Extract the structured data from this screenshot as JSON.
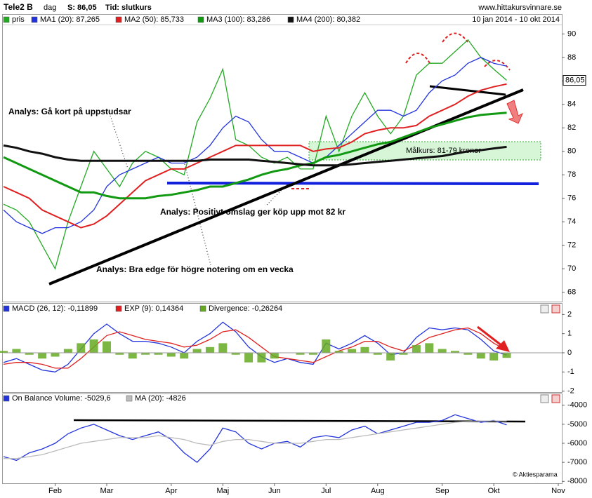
{
  "header": {
    "title": "Tele2 B",
    "period": "dag",
    "last": "S: 86,05",
    "time": "Tid: slutkurs",
    "site": "www.hittakursvinnare.se",
    "range": "10 jan 2014 - 10 okt 2014"
  },
  "annotations": [
    "Analys: Gå kort på uppstudsar",
    "Analys: Positivt omslag ger köp upp mot 82 kr",
    "Analys: Bra edge för högre notering om en vecka",
    "Målkurs: 81-79 kronor",
    "© Aktiesparama"
  ],
  "chart_data": [
    {
      "type": "line",
      "ylim": [
        67.2,
        90.8
      ],
      "yticks": [
        68,
        70,
        72,
        74,
        76,
        78,
        80,
        82,
        84,
        86,
        88,
        90
      ],
      "series": [
        {
          "name": "pris",
          "color": "#22aa22",
          "values": [
            75.5,
            75,
            74,
            72,
            70,
            74,
            77,
            80,
            78.5,
            77,
            79,
            80,
            79.5,
            78.5,
            78,
            82.5,
            84.5,
            87,
            81,
            80.5,
            79.5,
            79,
            79.5,
            78.5,
            78.5,
            83,
            80,
            83,
            85,
            83,
            81.5,
            83,
            86.5,
            87.5,
            87.5,
            88.5,
            89.5,
            88,
            87,
            86.05,
            null,
            null,
            null,
            null
          ],
          "value_labels": [
            null,
            null,
            null,
            null,
            null,
            null,
            null,
            null,
            null,
            null,
            null,
            null,
            null,
            null,
            null,
            null,
            null,
            null,
            null,
            null,
            null,
            null,
            null,
            null,
            null,
            null,
            null,
            null,
            null,
            null,
            null,
            null,
            null,
            null,
            null,
            null,
            null,
            null,
            null,
            "86,05",
            null,
            null,
            null,
            null
          ]
        },
        {
          "name": "MA1 (20): 87,265",
          "color": "#2233dd",
          "values": [
            75,
            74,
            73.5,
            73,
            73.5,
            73.5,
            74,
            75,
            77,
            78,
            78.5,
            79,
            79.5,
            79,
            79,
            79.5,
            80.5,
            82,
            83,
            82.5,
            81,
            80,
            80,
            79.5,
            79,
            79.5,
            80.5,
            81.5,
            82.5,
            83.5,
            83.5,
            83,
            83.5,
            85,
            86,
            86.5,
            87.5,
            88,
            87.5,
            87.265,
            null,
            null,
            null,
            null
          ]
        },
        {
          "name": "MA2 (50): 85,733",
          "color": "#e02020",
          "values": [
            77,
            76.5,
            76,
            75,
            74.5,
            74,
            73.5,
            73.8,
            74.5,
            75.5,
            76.5,
            77.5,
            78,
            78.5,
            78.5,
            79,
            79.5,
            80,
            80.5,
            80.5,
            80.5,
            80.5,
            80.5,
            80.5,
            80,
            80.2,
            80.3,
            80.8,
            81.5,
            81.8,
            82,
            82,
            82.2,
            83,
            83.5,
            84,
            84.7,
            85.2,
            85.5,
            85.733,
            null,
            null,
            null,
            null
          ]
        },
        {
          "name": "MA3 (100): 83,286",
          "color": "#119911",
          "values": [
            79.5,
            79,
            78.5,
            78,
            77.5,
            77,
            76.5,
            76.5,
            76.2,
            76,
            76,
            76,
            76.2,
            76.3,
            76.5,
            76.7,
            77,
            77,
            77.3,
            77.6,
            78,
            78.3,
            78.5,
            78.8,
            79,
            79.5,
            79.7,
            80,
            80.3,
            80.6,
            80.8,
            81.2,
            81.6,
            82,
            82.3,
            82.6,
            82.9,
            83.1,
            83.2,
            83.286,
            null,
            null,
            null,
            null
          ]
        },
        {
          "name": "MA4 (200): 80,382",
          "color": "#111111",
          "values": [
            80.5,
            80.3,
            80,
            79.8,
            79.5,
            79.3,
            79.2,
            79.2,
            79.2,
            79.2,
            79.2,
            79.2,
            79.2,
            79.2,
            79.2,
            79.2,
            79.3,
            79.3,
            79.3,
            79.3,
            79.2,
            79.1,
            79,
            78.9,
            78.8,
            78.8,
            78.8,
            78.9,
            79,
            79.1,
            79.2,
            79.3,
            79.4,
            79.5,
            79.6,
            79.8,
            80,
            80.1,
            80.25,
            80.382,
            null,
            null,
            null,
            null
          ]
        }
      ]
    },
    {
      "type": "line",
      "ylim": [
        -2.05,
        2.05
      ],
      "yticks": [
        -2,
        -1,
        0,
        1,
        2
      ],
      "series": [
        {
          "name": "MACD (26, 12): -0,11899",
          "color": "#2233dd",
          "values": [
            -0.5,
            -0.3,
            -0.6,
            -0.9,
            -1.0,
            -0.6,
            0.2,
            1.0,
            1.5,
            1.0,
            0.6,
            0.6,
            0.5,
            0.3,
            0,
            0.6,
            1.0,
            1.6,
            1.1,
            0.3,
            -0.2,
            -0.5,
            -0.3,
            -0.5,
            -0.6,
            0.5,
            0.2,
            0.5,
            0.9,
            0.5,
            -0.1,
            0,
            0.8,
            1.3,
            1.2,
            1.3,
            1.2,
            0.7,
            0.1,
            -0.11899,
            null,
            null,
            null,
            null
          ]
        },
        {
          "name": "EXP (9): 0,14364",
          "color": "#e02020",
          "values": [
            -0.6,
            -0.5,
            -0.5,
            -0.6,
            -0.8,
            -0.8,
            -0.3,
            0.3,
            0.9,
            1.1,
            0.9,
            0.7,
            0.6,
            0.5,
            0.3,
            0.4,
            0.7,
            1.1,
            1.2,
            0.8,
            0.3,
            -0.2,
            -0.3,
            -0.4,
            -0.5,
            -0.2,
            0.1,
            0.3,
            0.6,
            0.6,
            0.3,
            0.1,
            0.4,
            0.8,
            1.0,
            1.2,
            1.3,
            1.0,
            0.5,
            0.14364,
            null,
            null,
            null,
            null
          ]
        },
        {
          "name": "Divergence: -0,26264",
          "color": "#66aa22",
          "kind": "bar",
          "values": [
            0.1,
            0.2,
            -0.1,
            -0.3,
            -0.2,
            0.2,
            0.5,
            0.7,
            0.6,
            -0.1,
            -0.3,
            -0.1,
            -0.1,
            -0.2,
            -0.3,
            0.2,
            0.3,
            0.5,
            -0.1,
            -0.5,
            -0.5,
            -0.3,
            0,
            -0.1,
            -0.1,
            0.7,
            0.1,
            0.2,
            0.3,
            -0.1,
            -0.4,
            -0.1,
            0.4,
            0.5,
            0.2,
            0.1,
            -0.1,
            -0.3,
            -0.4,
            -0.26264,
            null,
            null,
            null,
            null
          ]
        }
      ]
    },
    {
      "type": "line",
      "ylim": [
        -8100,
        -3900
      ],
      "yticks": [
        -8000,
        -7000,
        -6000,
        -5000,
        -4000
      ],
      "categories": [
        null,
        null,
        null,
        null,
        "Feb",
        null,
        null,
        null,
        "Mar",
        null,
        null,
        null,
        null,
        "Apr",
        null,
        null,
        null,
        "Maj",
        null,
        null,
        null,
        "Jun",
        null,
        null,
        null,
        "Jul",
        null,
        null,
        null,
        "Aug",
        null,
        null,
        null,
        null,
        "Sep",
        null,
        null,
        null,
        "Okt",
        null,
        null,
        null,
        null,
        "Nov"
      ],
      "series": [
        {
          "name": "On Balance Volume: -5029,6",
          "color": "#2233dd",
          "values": [
            -6700,
            -6900,
            -6500,
            -6300,
            -6000,
            -5500,
            -5200,
            -5000,
            -5300,
            -5600,
            -5800,
            -5600,
            -5400,
            -5800,
            -6500,
            -7000,
            -6300,
            -5200,
            -5400,
            -6000,
            -6300,
            -6000,
            -5900,
            -6200,
            -5700,
            -5600,
            -5700,
            -5300,
            -5100,
            -5500,
            -5300,
            -5100,
            -4900,
            -4900,
            -4800,
            -4500,
            -4700,
            -4900,
            -4800,
            -5029.6,
            null,
            null,
            null,
            null
          ]
        },
        {
          "name": "MA (20): -4826",
          "color": "#bbbbbb",
          "values": [
            -6800,
            -6800,
            -6700,
            -6600,
            -6400,
            -6200,
            -6000,
            -5900,
            -5800,
            -5700,
            -5700,
            -5700,
            -5600,
            -5700,
            -5800,
            -6000,
            -6100,
            -5900,
            -5800,
            -5800,
            -5900,
            -6000,
            -6000,
            -6000,
            -5900,
            -5800,
            -5800,
            -5700,
            -5600,
            -5500,
            -5400,
            -5300,
            -5200,
            -5100,
            -5000,
            -4900,
            -4850,
            -4830,
            -4820,
            -4826,
            null,
            null,
            null,
            null
          ]
        }
      ]
    }
  ]
}
